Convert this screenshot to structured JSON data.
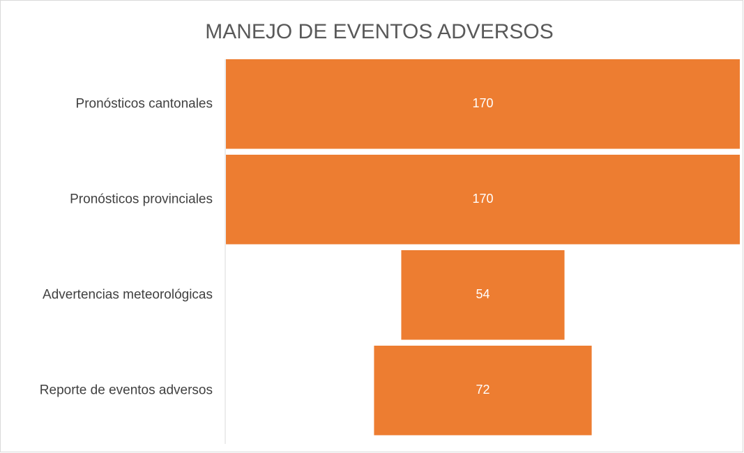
{
  "chart_data": {
    "type": "funnel",
    "title": "MANEJO DE EVENTOS ADVERSOS",
    "categories": [
      "Pronósticos cantonales",
      "Pronósticos provinciales",
      "Advertencias meteorológicas",
      "Reporte de eventos adversos"
    ],
    "values": [
      170,
      170,
      54,
      72
    ],
    "color": "#ed7d31"
  }
}
